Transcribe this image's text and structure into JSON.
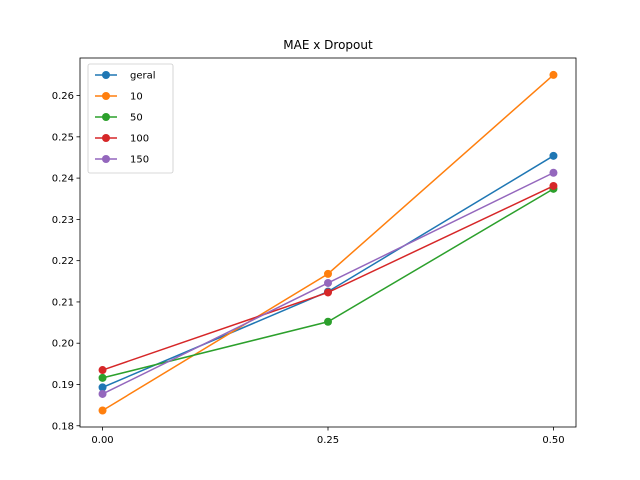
{
  "chart_data": {
    "type": "line",
    "title": "MAE x Dropout",
    "xlabel": "",
    "ylabel": "",
    "x": [
      0.0,
      0.25,
      0.5
    ],
    "x_tick_labels": [
      "0.00",
      "0.25",
      "0.50"
    ],
    "y_ticks": [
      0.18,
      0.19,
      0.2,
      0.21,
      0.22,
      0.23,
      0.24,
      0.25,
      0.26
    ],
    "y_tick_labels": [
      "0.18",
      "0.19",
      "0.20",
      "0.21",
      "0.22",
      "0.23",
      "0.24",
      "0.25",
      "0.26"
    ],
    "xlim": [
      -0.025,
      0.525
    ],
    "ylim": [
      0.1797,
      0.2691
    ],
    "grid": false,
    "legend_position": "top-left",
    "series": [
      {
        "name": "geral",
        "color": "#1f77b4",
        "values": [
          0.1893,
          0.2125,
          0.2454
        ]
      },
      {
        "name": "10",
        "color": "#ff7f0e",
        "values": [
          0.1837,
          0.2168,
          0.265
        ]
      },
      {
        "name": "50",
        "color": "#2ca02c",
        "values": [
          0.1916,
          0.2052,
          0.2374
        ]
      },
      {
        "name": "100",
        "color": "#d62728",
        "values": [
          0.1935,
          0.2123,
          0.2381
        ]
      },
      {
        "name": "150",
        "color": "#9467bd",
        "values": [
          0.1877,
          0.2146,
          0.2413
        ]
      }
    ]
  }
}
